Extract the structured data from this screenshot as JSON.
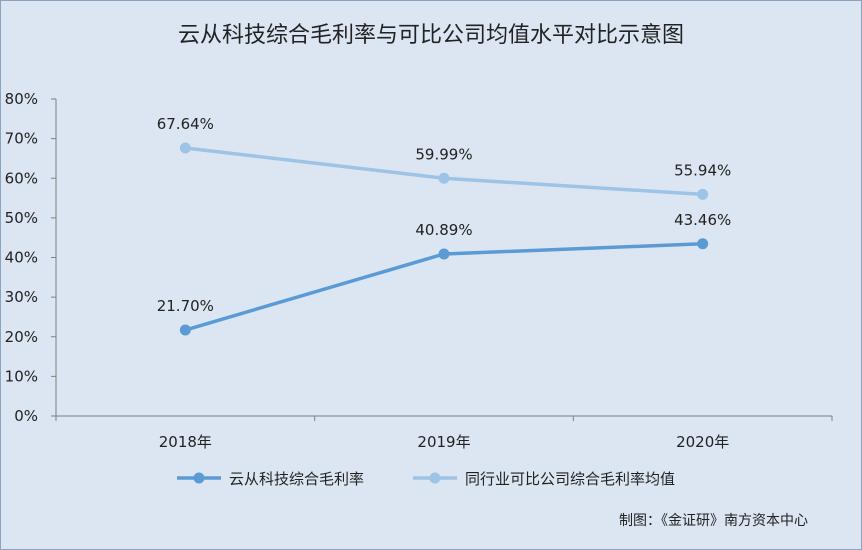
{
  "chart_data": {
    "type": "line",
    "title": "云从科技综合毛利率与可比公司均值水平对比示意图",
    "categories": [
      "2018年",
      "2019年",
      "2020年"
    ],
    "ylim": [
      0,
      80
    ],
    "yticks": [
      "0%",
      "10%",
      "20%",
      "30%",
      "40%",
      "50%",
      "60%",
      "70%",
      "80%"
    ],
    "grid": false,
    "legend_position": "bottom",
    "series": [
      {
        "name": "云从科技综合毛利率",
        "values": [
          21.7,
          40.89,
          43.46
        ],
        "labels": [
          "21.70%",
          "40.89%",
          "43.46%"
        ],
        "color": "#5b9bd5"
      },
      {
        "name": "同行业可比公司综合毛利率均值",
        "values": [
          67.64,
          59.99,
          55.94
        ],
        "labels": [
          "67.64%",
          "59.99%",
          "55.94%"
        ],
        "color": "#9dc3e6"
      }
    ],
    "source": "制图：《金证研》南方资本中心"
  }
}
